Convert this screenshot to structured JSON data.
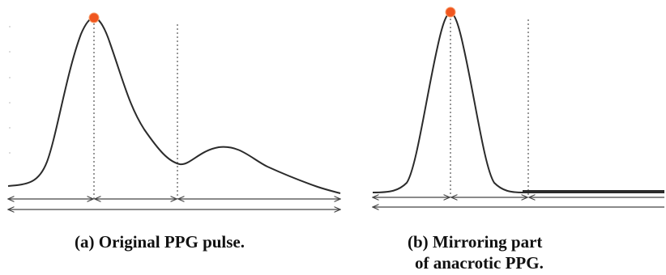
{
  "figure": {
    "panels": [
      {
        "id": "a",
        "caption": "(a) Original PPG pulse.",
        "waveform": "original-ppg-pulse",
        "markers": [
          "systolic-peak",
          "dicrotic-notch"
        ]
      },
      {
        "id": "b",
        "caption_line1": "(b) Mirroring part",
        "caption_line2": "of anacrotic PPG.",
        "waveform": "mirrored-anacrotic-ppg",
        "markers": [
          "systolic-peak",
          "pulse-end"
        ]
      }
    ],
    "colors": {
      "curve": "#2b2b2b",
      "peak_marker": "#f0561f",
      "guide_lines": "#555555",
      "arrows": "#444444"
    }
  }
}
